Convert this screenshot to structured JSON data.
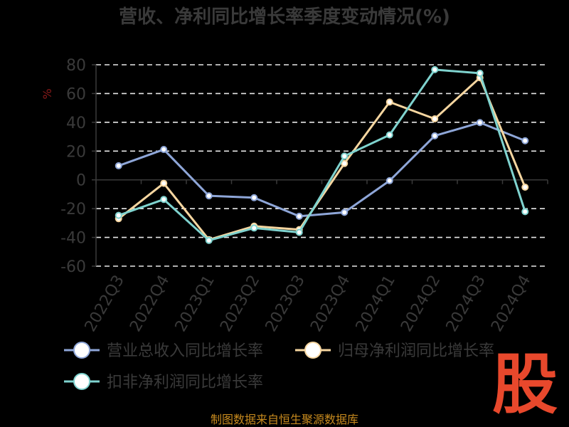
{
  "chart_data": {
    "type": "line",
    "title": "营收、净利同比增长率季度变动情况(%)",
    "ylabel": "%",
    "ylim": [
      -60,
      80
    ],
    "yticks": [
      80,
      60,
      40,
      20,
      0,
      -20,
      -40,
      -60
    ],
    "grid": true,
    "legend_position": "bottom",
    "categories": [
      "2022Q3",
      "2022Q4",
      "2023Q1",
      "2023Q2",
      "2023Q3",
      "2023Q4",
      "2024Q1",
      "2024Q2",
      "2024Q3",
      "2024Q4"
    ],
    "series": [
      {
        "name": "营业总收入同比增长率",
        "color": "#8ea6d8",
        "values": [
          9.8,
          21.1,
          -11.1,
          -12.4,
          -25.3,
          -22.6,
          -0.6,
          30.6,
          39.8,
          27.2
        ]
      },
      {
        "name": "归母净利润同比增长率",
        "color": "#f6d6a0",
        "values": [
          -27.0,
          -2.4,
          -41.6,
          -32.2,
          -34.6,
          11.4,
          54.1,
          42.4,
          71.0,
          -5.1
        ]
      },
      {
        "name": "扣非净利润同比增长率",
        "color": "#7fd3cf",
        "values": [
          -24.7,
          -13.6,
          -42.1,
          -33.5,
          -36.5,
          16.5,
          31.2,
          76.6,
          74.1,
          -22.1
        ]
      }
    ]
  },
  "footer": {
    "source": "制图数据来自恒生聚源数据库"
  },
  "logo": {
    "text": "股"
  }
}
